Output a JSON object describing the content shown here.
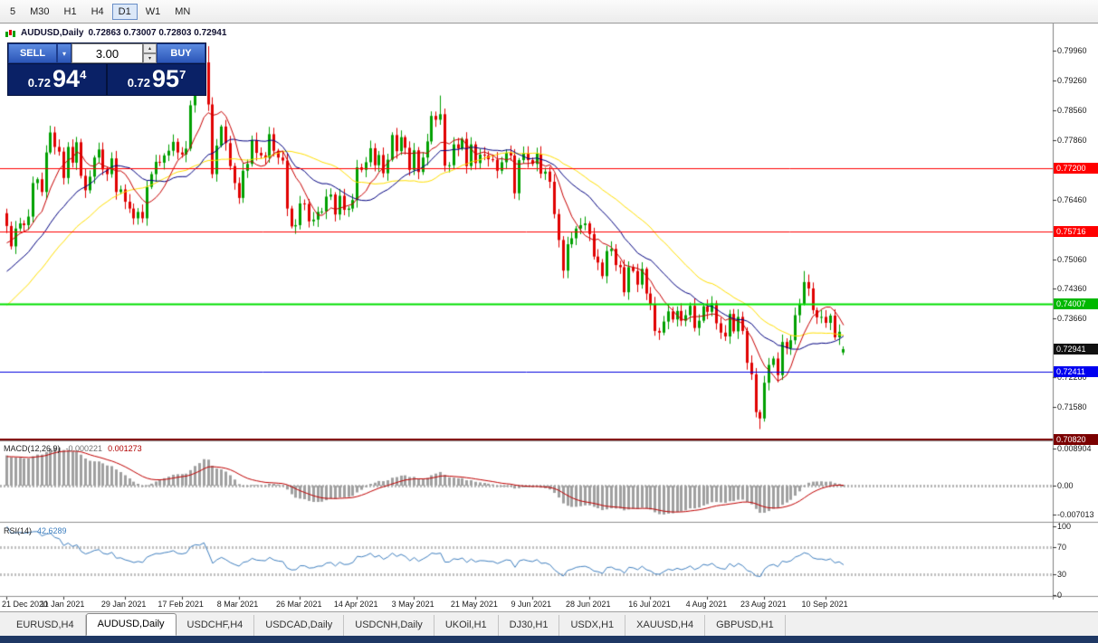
{
  "toolbar": {
    "timeframes": [
      {
        "label": "5"
      },
      {
        "label": "M30"
      },
      {
        "label": "H1"
      },
      {
        "label": "H4"
      },
      {
        "label": "D1",
        "active": true
      },
      {
        "label": "W1"
      },
      {
        "label": "MN"
      }
    ]
  },
  "chart_header": {
    "symbol": "AUDUSD,Daily",
    "ohlc": "0.72863 0.73007 0.72803 0.72941"
  },
  "trade_panel": {
    "sell_label": "SELL",
    "buy_label": "BUY",
    "volume": "3.00",
    "bid": {
      "prefix": "0.72",
      "big": "94",
      "sup": "4"
    },
    "ask": {
      "prefix": "0.72",
      "big": "95",
      "sup": "7"
    }
  },
  "chart_data": {
    "type": "candlestick",
    "symbol": "AUDUSD",
    "timeframe": "Daily",
    "ylim": [
      0.70793,
      0.80605
    ],
    "up_color": "#00A000",
    "down_color": "#E00000",
    "last_ohlc": {
      "open": 0.72863,
      "high": 0.73007,
      "low": 0.72803,
      "close": 0.72941
    },
    "closes": [
      0.7584,
      0.7536,
      0.7578,
      0.759,
      0.7586,
      0.7606,
      0.7685,
      0.7694,
      0.7664,
      0.7757,
      0.7804,
      0.777,
      0.7759,
      0.7697,
      0.777,
      0.7733,
      0.7781,
      0.7702,
      0.7668,
      0.77,
      0.7745,
      0.7764,
      0.7717,
      0.7706,
      0.7743,
      0.7664,
      0.767,
      0.7641,
      0.7625,
      0.7602,
      0.7617,
      0.7602,
      0.7676,
      0.7706,
      0.7735,
      0.7733,
      0.775,
      0.7761,
      0.7782,
      0.7757,
      0.7752,
      0.7766,
      0.7868,
      0.7914,
      0.791,
      0.7969,
      0.787,
      0.7706,
      0.7773,
      0.7818,
      0.7779,
      0.7725,
      0.7685,
      0.765,
      0.7714,
      0.773,
      0.7786,
      0.7756,
      0.775,
      0.7745,
      0.78,
      0.7761,
      0.7745,
      0.7738,
      0.7625,
      0.7583,
      0.7586,
      0.7637,
      0.7636,
      0.7595,
      0.7599,
      0.7617,
      0.7618,
      0.7653,
      0.7658,
      0.7611,
      0.7655,
      0.7622,
      0.7625,
      0.7645,
      0.7722,
      0.7716,
      0.7734,
      0.7767,
      0.7727,
      0.7751,
      0.7708,
      0.774,
      0.7798,
      0.776,
      0.7793,
      0.7768,
      0.7716,
      0.7762,
      0.7711,
      0.7745,
      0.7783,
      0.7843,
      0.7834,
      0.7847,
      0.7726,
      0.7727,
      0.7776,
      0.7766,
      0.7789,
      0.7725,
      0.7776,
      0.7732,
      0.7752,
      0.775,
      0.7741,
      0.774,
      0.7714,
      0.7734,
      0.7756,
      0.775,
      0.7661,
      0.7739,
      0.7755,
      0.7739,
      0.773,
      0.7754,
      0.7707,
      0.7712,
      0.7688,
      0.7612,
      0.7551,
      0.7479,
      0.7541,
      0.7555,
      0.7578,
      0.7586,
      0.759,
      0.7565,
      0.7512,
      0.7498,
      0.7466,
      0.7525,
      0.753,
      0.7492,
      0.7487,
      0.7428,
      0.7487,
      0.7478,
      0.7446,
      0.7483,
      0.7425,
      0.74,
      0.7337,
      0.7333,
      0.7359,
      0.7383,
      0.7364,
      0.7384,
      0.7361,
      0.7374,
      0.7396,
      0.7344,
      0.7361,
      0.7395,
      0.7382,
      0.7402,
      0.7355,
      0.7333,
      0.7324,
      0.7377,
      0.7336,
      0.737,
      0.7337,
      0.7262,
      0.7235,
      0.7146,
      0.7131,
      0.7215,
      0.7257,
      0.7272,
      0.7233,
      0.7311,
      0.7296,
      0.7315,
      0.7374,
      0.7401,
      0.7452,
      0.7437,
      0.7386,
      0.7369,
      0.737,
      0.7356,
      0.7373,
      0.7322,
      0.7335,
      0.72941
    ],
    "overrides": {
      "10": {
        "high": 0.782
      },
      "46": {
        "high": 0.8007
      },
      "99": {
        "high": 0.7891
      },
      "127": {
        "low": 0.7461
      },
      "172": {
        "low": 0.7106
      },
      "182": {
        "high": 0.7478
      },
      "191": {
        "open": 0.72863,
        "high": 0.73007,
        "low": 0.72803,
        "close": 0.72941
      }
    },
    "moving_averages": [
      {
        "period": 34,
        "color": "#FFE000",
        "width": 1
      },
      {
        "period": 20,
        "color": "#000080",
        "width": 1
      },
      {
        "period": 8,
        "color": "#C80000",
        "width": 1
      }
    ],
    "hlines": [
      {
        "price": 0.772,
        "color": "#FF0000",
        "width": 1
      },
      {
        "price": 0.75716,
        "color": "#FF0000",
        "width": 1
      },
      {
        "price": 0.74007,
        "color": "#00E000",
        "width": 2
      },
      {
        "price": 0.72411,
        "color": "#0000E0",
        "width": 1
      },
      {
        "price": 0.7082,
        "color": "#7B0000",
        "width": 3
      }
    ]
  },
  "macd": {
    "label": "MACD(12,26,9)",
    "value1": "-0.000221",
    "value2": "0.001273",
    "fast": 12,
    "slow": 26,
    "signal": 9,
    "hist_color": "#A0A0A0",
    "signal_color": "#C00000",
    "ylim": [
      -0.0085,
      0.0105
    ],
    "axis": [
      {
        "text": "0.008904",
        "value": 0.008904
      },
      {
        "text": "0.00",
        "value": 0
      },
      {
        "text": "-0.007013",
        "value": -0.007013
      }
    ]
  },
  "rsi": {
    "label": "RSI(14)",
    "value": "42.6289",
    "period": 14,
    "color": "#4080C0",
    "levels": [
      70,
      30
    ],
    "axis": [
      {
        "text": "100",
        "value": 100
      },
      {
        "text": "70",
        "value": 70
      },
      {
        "text": "30",
        "value": 30
      },
      {
        "text": "0",
        "value": 0
      }
    ]
  },
  "y_axis": {
    "labels": [
      "0.79960",
      "0.79260",
      "0.78560",
      "0.77860",
      "0.76460",
      "0.75060",
      "0.74360",
      "0.73660",
      "0.72280",
      "0.71580"
    ],
    "badges": [
      {
        "text": "0.77200",
        "price": 0.772,
        "bg": "#FF0000"
      },
      {
        "text": "0.75716",
        "price": 0.75716,
        "bg": "#FF0000"
      },
      {
        "text": "0.74007",
        "price": 0.74007,
        "bg": "#00B800"
      },
      {
        "text": "0.72941",
        "price": 0.72941,
        "bg": "#111111"
      },
      {
        "text": "0.72411",
        "price": 0.72411,
        "bg": "#0000F0"
      },
      {
        "text": "0.70820",
        "price": 0.7082,
        "bg": "#7B0000"
      }
    ]
  },
  "x_axis": {
    "ticks": [
      {
        "index": 0,
        "label": "21 Dec 2020"
      },
      {
        "index": 13,
        "label": "11 Jan 2021"
      },
      {
        "index": 27,
        "label": "29 Jan 2021"
      },
      {
        "index": 40,
        "label": "17 Feb 2021"
      },
      {
        "index": 53,
        "label": "8 Mar 2021"
      },
      {
        "index": 67,
        "label": "26 Mar 2021"
      },
      {
        "index": 80,
        "label": "14 Apr 2021"
      },
      {
        "index": 93,
        "label": "3 May 2021"
      },
      {
        "index": 107,
        "label": "21 May 2021"
      },
      {
        "index": 120,
        "label": "9 Jun 2021"
      },
      {
        "index": 133,
        "label": "28 Jun 2021"
      },
      {
        "index": 147,
        "label": "16 Jul 2021"
      },
      {
        "index": 160,
        "label": "4 Aug 2021"
      },
      {
        "index": 173,
        "label": "23 Aug 2021"
      },
      {
        "index": 187,
        "label": "10 Sep 2021"
      }
    ]
  },
  "tabs": [
    {
      "label": "EURUSD,H4"
    },
    {
      "label": "AUDUSD,Daily",
      "active": true
    },
    {
      "label": "USDCHF,H4"
    },
    {
      "label": "USDCAD,Daily"
    },
    {
      "label": "USDCNH,Daily"
    },
    {
      "label": "UKOil,H1"
    },
    {
      "label": "DJ30,H1"
    },
    {
      "label": "USDX,H1"
    },
    {
      "label": "XAUUSD,H4"
    },
    {
      "label": "GBPUSD,H1"
    }
  ]
}
